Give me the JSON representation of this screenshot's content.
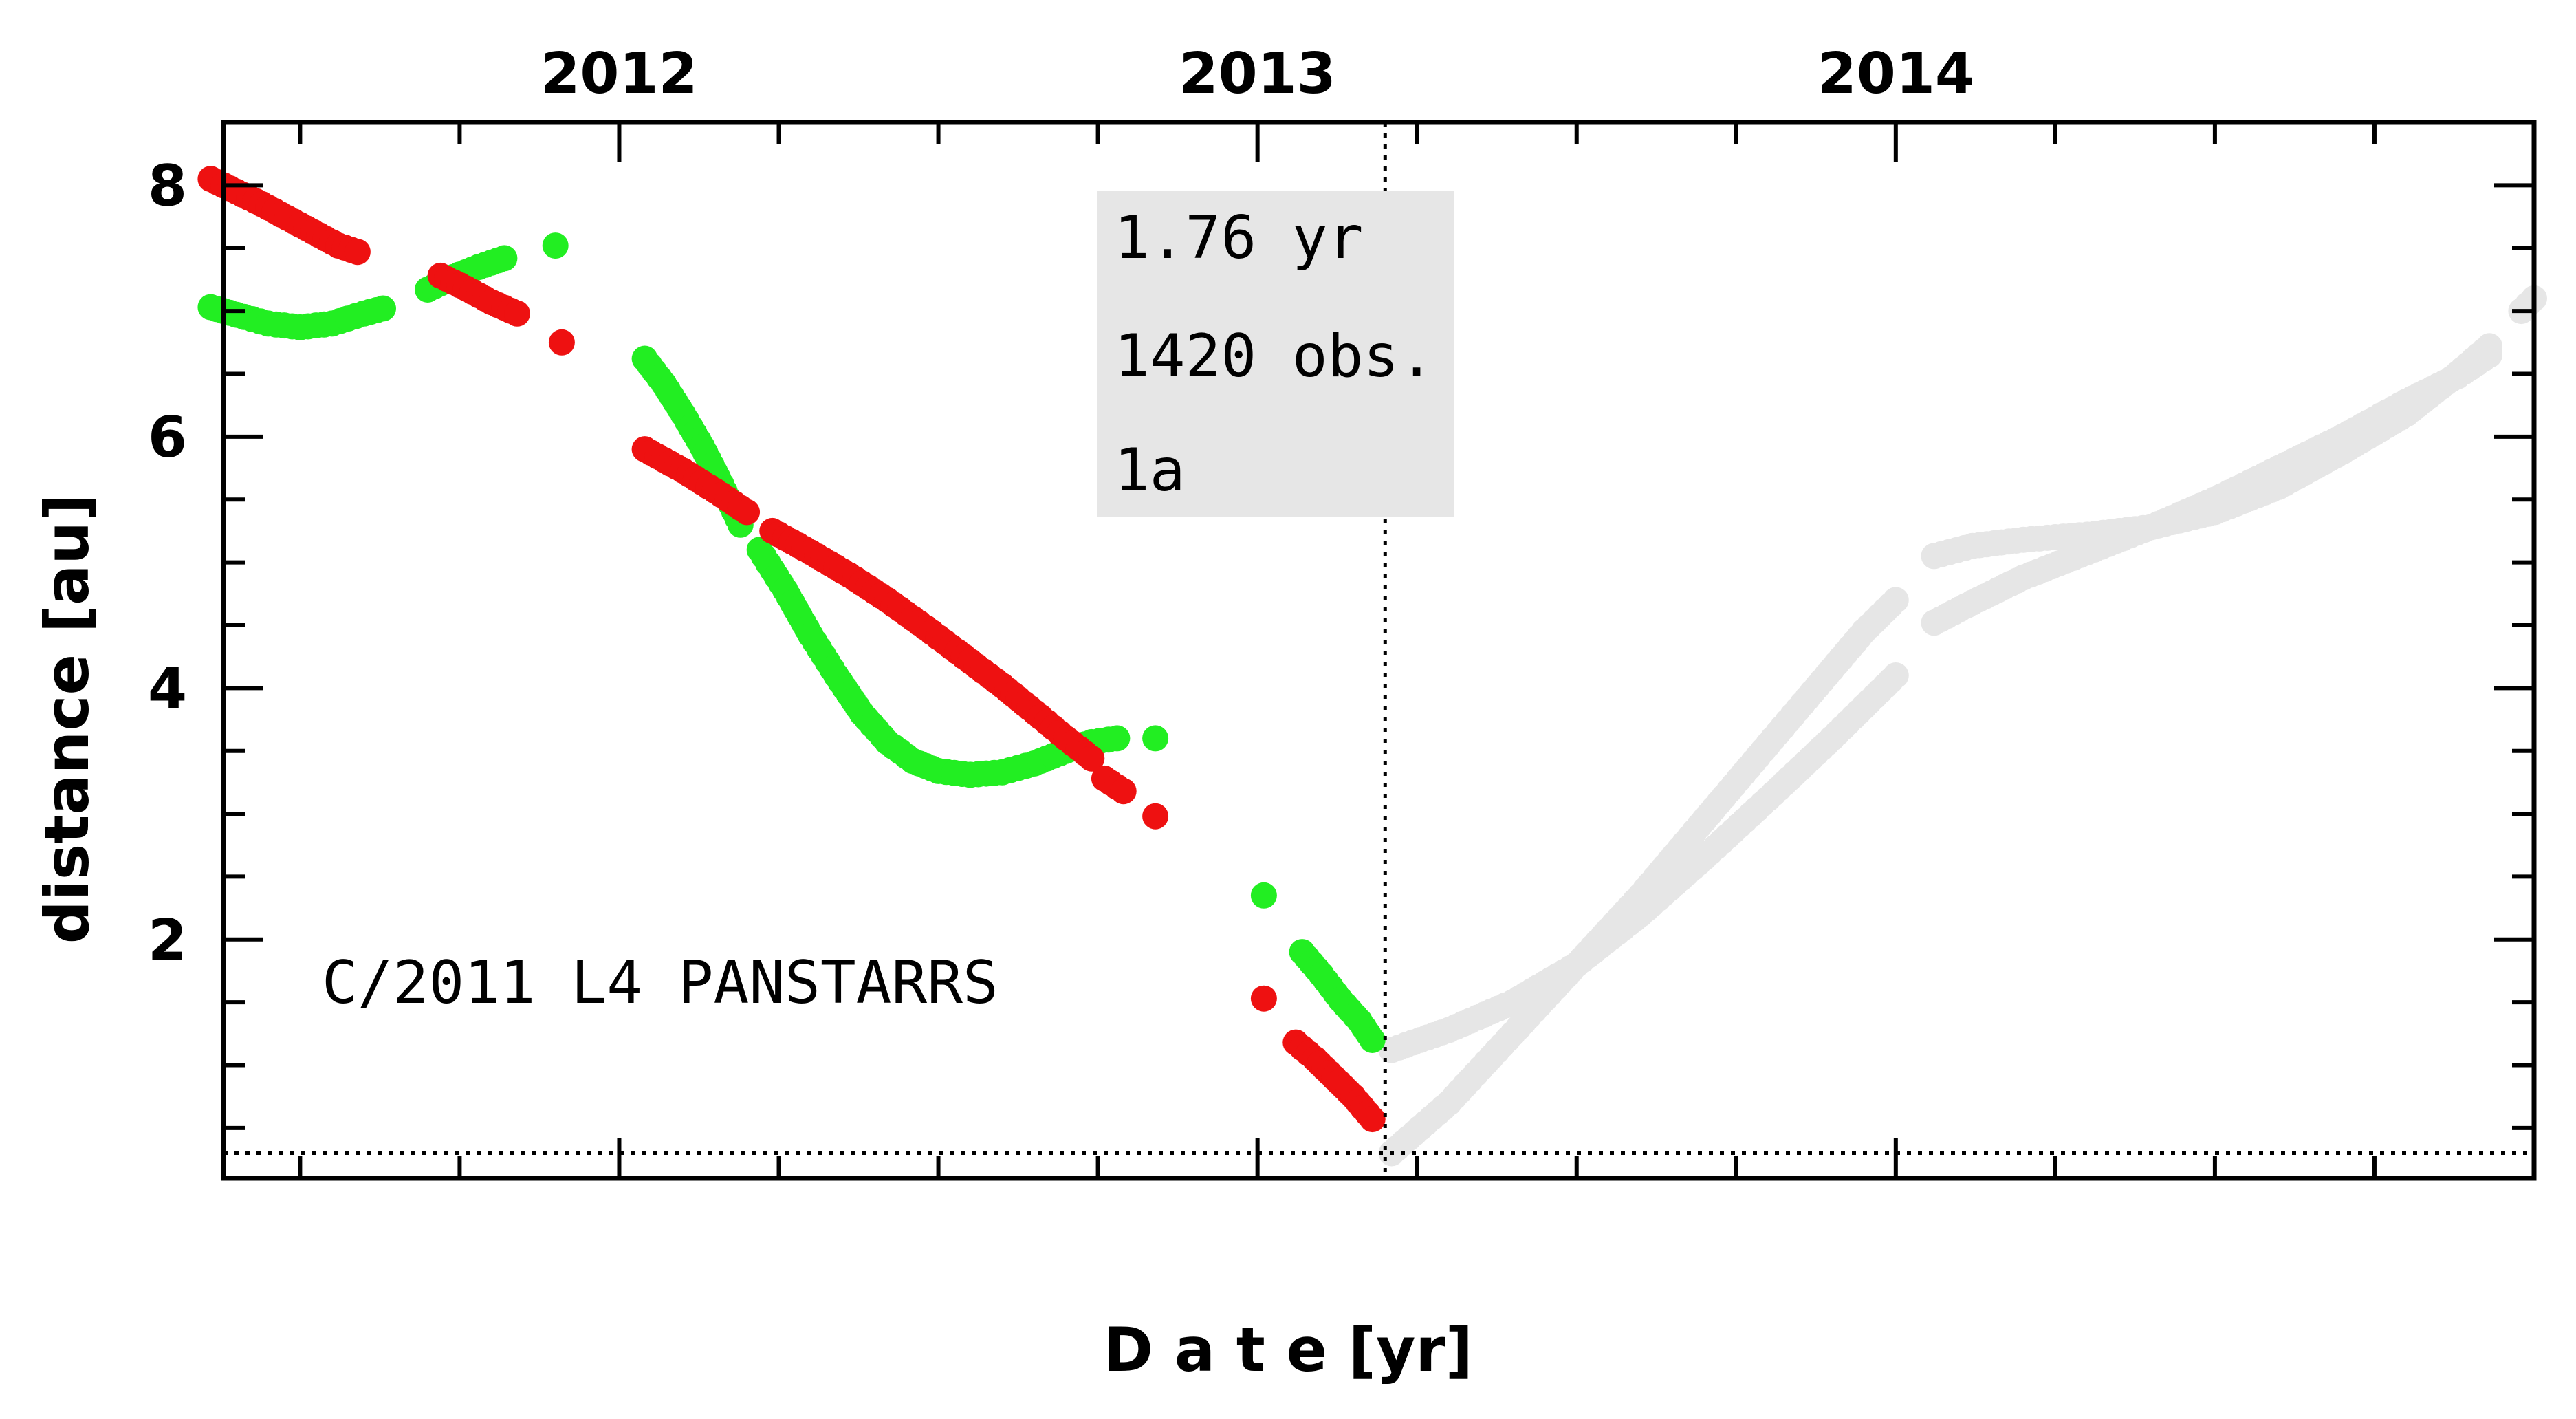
{
  "chart_data": {
    "type": "scatter",
    "object_label": "C/2011 L4 PANSTARRS",
    "xlabel": "D a t e [yr]",
    "ylabel": "distance [au]",
    "x_ticklabels": [
      "2012",
      "2013",
      "2014"
    ],
    "y_ticklabels": [
      "2",
      "4",
      "6",
      "8"
    ],
    "xlim": [
      2011.38,
      2015.0
    ],
    "ylim": [
      0.1,
      8.5
    ],
    "info_box": [
      "1.76 yr",
      "1420 obs.",
      "1a"
    ],
    "reference_lines": {
      "vertical_x": 2013.2,
      "horizontal_y": 0.3
    },
    "colors": {
      "green": "#22ee22",
      "red": "#ee1111",
      "gray": "#e6e6e6",
      "box": "#e6e6e6"
    },
    "series": [
      {
        "color": "green",
        "segments": [
          {
            "points": [
              [
                2011.36,
                7.03
              ],
              [
                2011.4,
                6.97
              ],
              [
                2011.45,
                6.9
              ],
              [
                2011.5,
                6.87
              ],
              [
                2011.55,
                6.9
              ],
              [
                2011.6,
                6.98
              ],
              [
                2011.63,
                7.02
              ]
            ]
          },
          {
            "points": [
              [
                2011.7,
                7.17
              ],
              [
                2011.74,
                7.27
              ],
              [
                2011.78,
                7.35
              ],
              [
                2011.82,
                7.42
              ]
            ]
          },
          {
            "points": [
              [
                2011.9,
                7.52
              ]
            ]
          },
          {
            "points": [
              [
                2012.04,
                6.62
              ],
              [
                2012.07,
                6.42
              ],
              [
                2012.1,
                6.18
              ],
              [
                2012.13,
                5.92
              ],
              [
                2012.16,
                5.62
              ],
              [
                2012.19,
                5.3
              ]
            ]
          },
          {
            "points": [
              [
                2012.22,
                5.1
              ],
              [
                2012.26,
                4.78
              ],
              [
                2012.3,
                4.42
              ],
              [
                2012.34,
                4.1
              ],
              [
                2012.38,
                3.8
              ],
              [
                2012.42,
                3.57
              ],
              [
                2012.46,
                3.42
              ],
              [
                2012.5,
                3.34
              ],
              [
                2012.55,
                3.31
              ],
              [
                2012.6,
                3.33
              ],
              [
                2012.65,
                3.4
              ],
              [
                2012.7,
                3.5
              ],
              [
                2012.74,
                3.57
              ],
              [
                2012.78,
                3.6
              ]
            ]
          },
          {
            "points": [
              [
                2012.84,
                3.6
              ]
            ]
          },
          {
            "points": [
              [
                2013.01,
                2.35
              ]
            ]
          },
          {
            "points": [
              [
                2013.07,
                1.9
              ],
              [
                2013.1,
                1.72
              ],
              [
                2013.13,
                1.52
              ],
              [
                2013.16,
                1.35
              ],
              [
                2013.18,
                1.2
              ]
            ]
          }
        ]
      },
      {
        "color": "red",
        "segments": [
          {
            "points": [
              [
                2011.36,
                8.05
              ],
              [
                2011.4,
                7.95
              ],
              [
                2011.44,
                7.85
              ],
              [
                2011.48,
                7.74
              ],
              [
                2011.52,
                7.63
              ],
              [
                2011.56,
                7.52
              ],
              [
                2011.59,
                7.47
              ]
            ]
          },
          {
            "points": [
              [
                2011.72,
                7.28
              ],
              [
                2011.76,
                7.18
              ],
              [
                2011.8,
                7.07
              ],
              [
                2011.84,
                6.98
              ]
            ]
          },
          {
            "points": [
              [
                2011.91,
                6.75
              ]
            ]
          },
          {
            "points": [
              [
                2012.04,
                5.9
              ],
              [
                2012.1,
                5.73
              ],
              [
                2012.15,
                5.57
              ],
              [
                2012.2,
                5.4
              ]
            ]
          },
          {
            "points": [
              [
                2012.24,
                5.25
              ],
              [
                2012.3,
                5.08
              ],
              [
                2012.36,
                4.9
              ],
              [
                2012.42,
                4.7
              ],
              [
                2012.48,
                4.48
              ],
              [
                2012.54,
                4.25
              ],
              [
                2012.6,
                4.02
              ],
              [
                2012.66,
                3.77
              ],
              [
                2012.7,
                3.6
              ],
              [
                2012.74,
                3.44
              ]
            ]
          },
          {
            "points": [
              [
                2012.76,
                3.28
              ],
              [
                2012.79,
                3.18
              ]
            ]
          },
          {
            "points": [
              [
                2012.84,
                2.98
              ]
            ]
          },
          {
            "points": [
              [
                2013.01,
                1.53
              ]
            ]
          },
          {
            "points": [
              [
                2013.06,
                1.18
              ],
              [
                2013.09,
                1.05
              ],
              [
                2013.12,
                0.9
              ],
              [
                2013.15,
                0.75
              ],
              [
                2013.18,
                0.57
              ]
            ]
          }
        ]
      },
      {
        "color": "gray",
        "segments": [
          {
            "points": [
              [
                2013.21,
                1.12
              ],
              [
                2013.3,
                1.28
              ],
              [
                2013.4,
                1.5
              ],
              [
                2013.5,
                1.8
              ],
              [
                2013.6,
                2.2
              ],
              [
                2013.7,
                2.65
              ],
              [
                2013.8,
                3.12
              ],
              [
                2013.9,
                3.6
              ],
              [
                2013.95,
                3.85
              ],
              [
                2014.0,
                4.1
              ]
            ]
          },
          {
            "points": [
              [
                2013.21,
                0.3
              ],
              [
                2013.3,
                0.7
              ],
              [
                2013.4,
                1.25
              ],
              [
                2013.5,
                1.8
              ],
              [
                2013.6,
                2.35
              ],
              [
                2013.7,
                2.95
              ],
              [
                2013.8,
                3.55
              ],
              [
                2013.9,
                4.15
              ],
              [
                2013.95,
                4.45
              ],
              [
                2014.0,
                4.7
              ]
            ]
          },
          {
            "points": [
              [
                2014.06,
                5.05
              ],
              [
                2014.12,
                5.13
              ],
              [
                2014.2,
                5.18
              ],
              [
                2014.3,
                5.22
              ],
              [
                2014.4,
                5.28
              ],
              [
                2014.5,
                5.4
              ],
              [
                2014.6,
                5.6
              ],
              [
                2014.7,
                5.88
              ],
              [
                2014.8,
                6.18
              ],
              [
                2014.88,
                6.5
              ],
              [
                2014.93,
                6.72
              ]
            ]
          },
          {
            "points": [
              [
                2014.06,
                4.52
              ],
              [
                2014.12,
                4.68
              ],
              [
                2014.2,
                4.88
              ],
              [
                2014.3,
                5.08
              ],
              [
                2014.4,
                5.28
              ],
              [
                2014.5,
                5.5
              ],
              [
                2014.6,
                5.75
              ],
              [
                2014.7,
                6.0
              ],
              [
                2014.8,
                6.28
              ],
              [
                2014.88,
                6.48
              ],
              [
                2014.93,
                6.65
              ]
            ]
          },
          {
            "points": [
              [
                2014.98,
                7.0
              ],
              [
                2015.0,
                7.1
              ]
            ]
          }
        ]
      }
    ]
  }
}
